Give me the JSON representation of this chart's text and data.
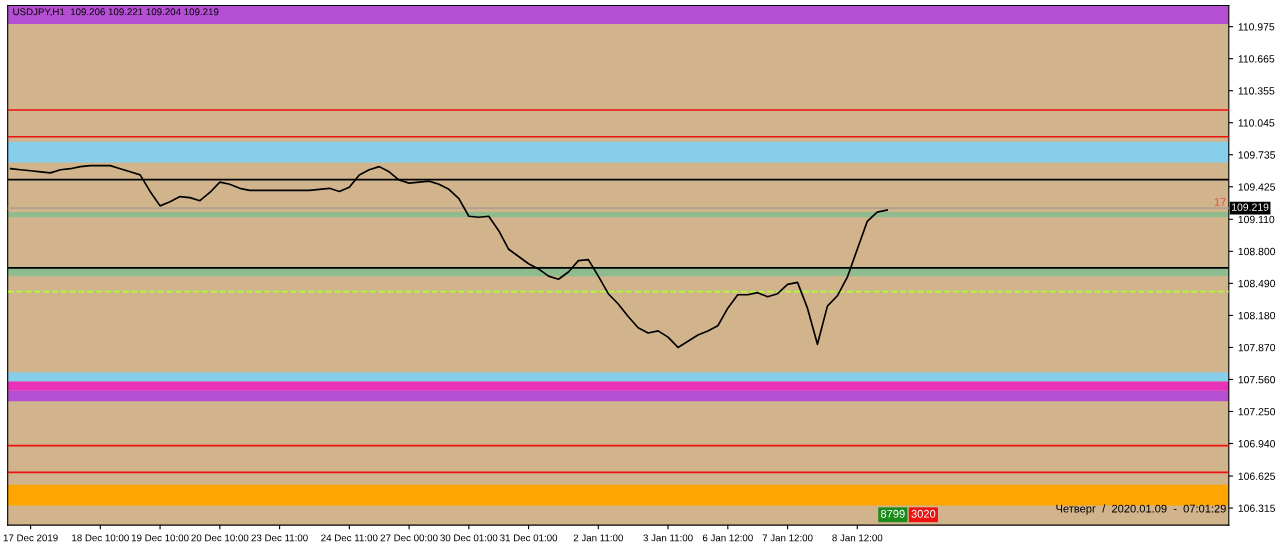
{
  "chart_data": {
    "type": "line",
    "title": "USDJPY,H1  109.206 109.221 109.204 109.219",
    "categories": [
      null,
      null,
      "17 Dec 2019",
      null,
      null,
      null,
      null,
      null,
      null,
      "18 Dec 10:00",
      null,
      null,
      null,
      null,
      null,
      "19 Dec 10:00",
      null,
      null,
      null,
      null,
      null,
      "20 Dec 10:00",
      null,
      null,
      null,
      null,
      null,
      "23 Dec 11:00",
      null,
      null,
      null,
      null,
      null,
      null,
      "24 Dec 11:00",
      null,
      null,
      null,
      null,
      null,
      "27 Dec 00:00",
      null,
      null,
      null,
      null,
      null,
      "30 Dec 01:00",
      null,
      null,
      null,
      null,
      null,
      "31 Dec 01:00",
      null,
      null,
      null,
      null,
      null,
      null,
      "2 Jan 11:00",
      null,
      null,
      null,
      null,
      null,
      null,
      "3 Jan 11:00",
      null,
      null,
      null,
      null,
      null,
      "6 Jan 12:00",
      null,
      null,
      null,
      null,
      null,
      "7 Jan 12:00",
      null,
      null,
      null,
      null,
      null,
      null,
      "8 Jan 12:00",
      null,
      null,
      null,
      null,
      null,
      null,
      null,
      null,
      null,
      null,
      null,
      null,
      null,
      null,
      null,
      null,
      null,
      null,
      null,
      null,
      null,
      null,
      null,
      null,
      null,
      null,
      null,
      null,
      null,
      null,
      null,
      null,
      null,
      null,
      null,
      null,
      null
    ],
    "series": [
      {
        "color": "#000000",
        "values": [
          109.6,
          109.59,
          109.58,
          109.57,
          109.56,
          109.59,
          109.6,
          109.62,
          109.63,
          109.63,
          109.63,
          109.6,
          109.57,
          109.54,
          109.38,
          109.24,
          109.28,
          109.33,
          109.32,
          109.29,
          109.37,
          109.47,
          109.45,
          109.41,
          109.39,
          109.39,
          109.39,
          109.39,
          109.39,
          109.39,
          109.39,
          109.4,
          109.41,
          109.38,
          109.42,
          109.54,
          109.59,
          109.62,
          109.57,
          109.49,
          109.46,
          109.47,
          109.48,
          109.45,
          109.4,
          109.31,
          109.14,
          109.13,
          109.14,
          109.0,
          108.82,
          108.75,
          108.68,
          108.63,
          108.56,
          108.53,
          108.6,
          108.71,
          108.72,
          108.56,
          108.39,
          108.29,
          108.17,
          108.06,
          108.01,
          108.03,
          107.97,
          107.87,
          107.93,
          107.99,
          108.03,
          108.08,
          108.25,
          108.38,
          108.38,
          108.4,
          108.36,
          108.39,
          108.48,
          108.5,
          108.25,
          107.9,
          108.27,
          108.37,
          108.55,
          108.82,
          109.09,
          109.18,
          109.2,
          null,
          null,
          null,
          null,
          null,
          null,
          null,
          null,
          null,
          null,
          null,
          null,
          null,
          null,
          null,
          null,
          null,
          null,
          null,
          null,
          null,
          null,
          null,
          null,
          null,
          null,
          null,
          null,
          null,
          null,
          null,
          null,
          null,
          null
        ]
      }
    ],
    "ylim": [
      106.15,
      111.18
    ],
    "yticks": [
      110.975,
      110.665,
      110.355,
      110.045,
      109.735,
      109.425,
      {
        "value": 109.11,
        "label": "109.110"
      },
      {
        "value": 108.8,
        "label": "108.800"
      },
      {
        "value": 108.49,
        "label": "108.490"
      },
      {
        "value": 108.18,
        "label": "108.180"
      },
      {
        "value": 107.87,
        "label": "107.870"
      },
      {
        "value": 107.56,
        "label": "107.560"
      },
      {
        "value": 107.25,
        "label": "107.250"
      },
      {
        "value": 106.94,
        "label": "106.940"
      },
      106.625,
      106.315
    ],
    "ref_lines": [
      {
        "axis": "y",
        "value": 110.168,
        "color": "#ee1111"
      },
      {
        "axis": "y",
        "value": 109.909,
        "color": "#ee1111"
      },
      {
        "axis": "y",
        "value": 106.92,
        "color": "#ee1111"
      },
      {
        "axis": "y",
        "value": 106.661,
        "color": "#ee1111"
      },
      {
        "axis": "y",
        "value": 109.495,
        "color": "#000000"
      },
      {
        "axis": "y",
        "value": 108.64,
        "color": "#000000"
      },
      {
        "axis": "y",
        "value": 108.41,
        "color": "#adff2f",
        "line_style": "dashed"
      },
      {
        "axis": "y",
        "value": 109.219,
        "color": "#b0a090",
        "label": "109.219"
      }
    ],
    "bands": [
      {
        "axis": "y",
        "from": 111.0,
        "to": 111.18,
        "color": "#b44fd4"
      },
      {
        "axis": "y",
        "from": 109.66,
        "to": 109.86,
        "color": "#87ceeb"
      },
      {
        "axis": "y",
        "from": 109.13,
        "to": 109.18,
        "color": "#8fbc8f"
      },
      {
        "axis": "y",
        "from": 108.56,
        "to": 108.65,
        "color": "#8fbc8f"
      },
      {
        "axis": "y",
        "from": 107.54,
        "to": 107.63,
        "color": "#87ceeb"
      },
      {
        "axis": "y",
        "from": 107.45,
        "to": 107.54,
        "color": "#e832b8"
      },
      {
        "axis": "y",
        "from": 107.35,
        "to": 107.45,
        "color": "#b44fd4"
      },
      {
        "axis": "y",
        "from": 106.34,
        "to": 106.54,
        "color": "#ffa500"
      }
    ],
    "annotations": [
      "Четверг  /  2020.01.09  -  07:01:29",
      "8799",
      "3020",
      "17"
    ]
  }
}
